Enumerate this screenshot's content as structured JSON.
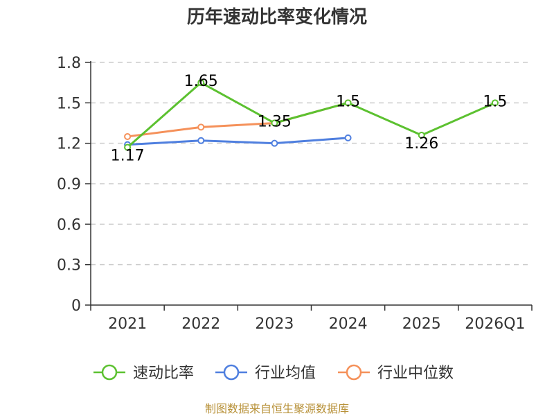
{
  "chart_data": {
    "type": "line",
    "title": "历年速动比率变化情况",
    "categories": [
      "2021",
      "2022",
      "2023",
      "2024",
      "2025",
      "2026Q1"
    ],
    "y_ticks": [
      "0",
      "0.3",
      "0.6",
      "0.9",
      "1.2",
      "1.5",
      "1.8"
    ],
    "ylim": [
      0,
      1.8
    ],
    "grid": true,
    "legend_position": "bottom",
    "series": [
      {
        "name": "速动比率",
        "color": "#5cc130",
        "values": [
          1.17,
          1.65,
          1.35,
          1.5,
          1.26,
          1.5
        ],
        "data_labels": [
          "1.17",
          "1.65",
          "1.35",
          "1.5",
          "1.26",
          "1.5"
        ]
      },
      {
        "name": "行业均值",
        "color": "#4f7fdf",
        "values": [
          1.19,
          1.22,
          1.2,
          1.24,
          null,
          null
        ]
      },
      {
        "name": "行业中位数",
        "color": "#f5915a",
        "values": [
          1.25,
          1.32,
          1.35,
          1.5,
          null,
          null
        ]
      }
    ],
    "source": "制图数据来自恒生聚源数据库"
  }
}
